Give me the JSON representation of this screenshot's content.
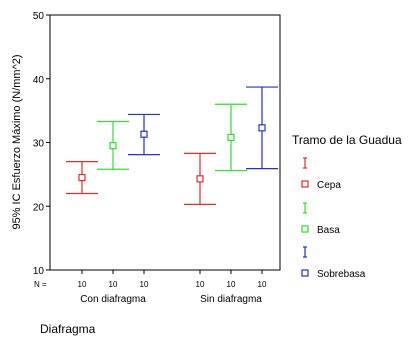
{
  "chart_data": {
    "type": "errorbar",
    "title": "",
    "ylabel": "95% IC Esfuerzo Máximo (N/mm^2)",
    "xlabel": "Diafragma",
    "ylim": [
      10,
      50
    ],
    "yticks": [
      10,
      20,
      30,
      40,
      50
    ],
    "categories": [
      "Con diafragma",
      "Sin diafragma"
    ],
    "n_label": "N =",
    "legend_title": "Tramo de la Guadua",
    "colors": {
      "Cepa": "#e03030",
      "Basa": "#33dd33",
      "Sobrebasa": "#2233cc"
    },
    "series": [
      {
        "name": "Cepa",
        "n": [
          "10",
          "10"
        ],
        "mean": [
          24.5,
          24.3
        ],
        "lower": [
          22.0,
          20.3
        ],
        "upper": [
          27.0,
          28.3
        ]
      },
      {
        "name": "Basa",
        "n": [
          "10",
          "10"
        ],
        "mean": [
          29.5,
          30.8
        ],
        "lower": [
          25.8,
          25.6
        ],
        "upper": [
          33.3,
          36.0
        ]
      },
      {
        "name": "Sobrebasa",
        "n": [
          "10",
          "10"
        ],
        "mean": [
          31.3,
          32.3
        ],
        "lower": [
          28.1,
          25.9
        ],
        "upper": [
          34.4,
          38.7
        ]
      }
    ]
  }
}
